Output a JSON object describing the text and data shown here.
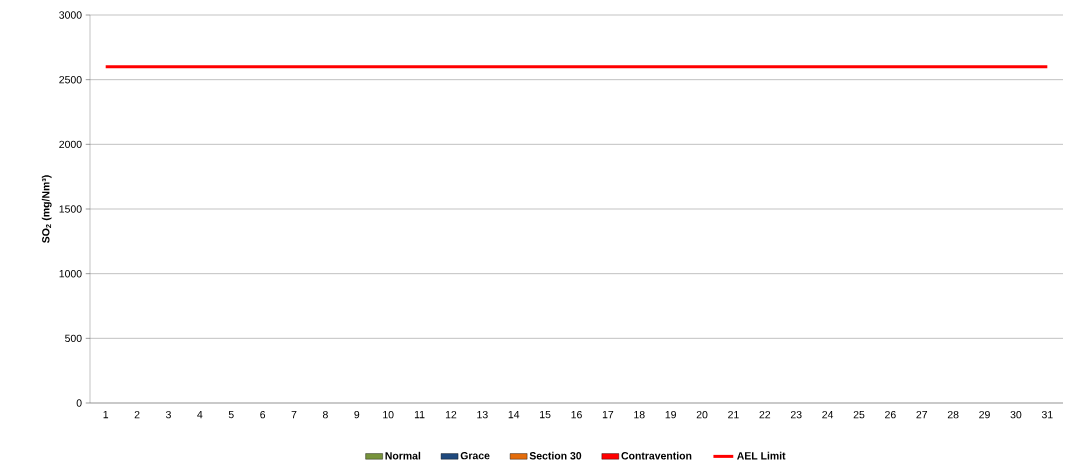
{
  "chart_data": {
    "type": "bar",
    "ylabel": "SO$_{2}$ (mg/Nm³)",
    "categories": [
      "1",
      "2",
      "3",
      "4",
      "5",
      "6",
      "7",
      "8",
      "9",
      "10",
      "11",
      "12",
      "13",
      "14",
      "15",
      "16",
      "17",
      "18",
      "19",
      "20",
      "21",
      "22",
      "23",
      "24",
      "25",
      "26",
      "27",
      "28",
      "29",
      "30",
      "31"
    ],
    "series": [
      {
        "name": "Normal",
        "color": "#77933c",
        "values": [
          null,
          null,
          null,
          null,
          null,
          null,
          null,
          null,
          null,
          null,
          null,
          null,
          null,
          null,
          null,
          null,
          null,
          null,
          null,
          null,
          null,
          null,
          null,
          null,
          null,
          null,
          null,
          null,
          null,
          null,
          null
        ]
      },
      {
        "name": "Grace",
        "color": "#1f497d",
        "values": [
          null,
          null,
          null,
          null,
          null,
          null,
          null,
          null,
          null,
          null,
          null,
          null,
          null,
          null,
          null,
          null,
          null,
          null,
          null,
          null,
          null,
          null,
          null,
          null,
          null,
          null,
          null,
          null,
          null,
          null,
          null
        ]
      },
      {
        "name": "Section 30",
        "color": "#e46c0a",
        "values": [
          null,
          null,
          null,
          null,
          null,
          null,
          null,
          null,
          null,
          null,
          null,
          null,
          null,
          null,
          null,
          null,
          null,
          null,
          null,
          null,
          null,
          null,
          null,
          null,
          null,
          null,
          null,
          null,
          null,
          null,
          null
        ]
      },
      {
        "name": "Contravention",
        "color": "#ff0000",
        "values": [
          null,
          null,
          null,
          null,
          null,
          null,
          null,
          null,
          null,
          null,
          null,
          null,
          null,
          null,
          null,
          null,
          null,
          null,
          null,
          null,
          null,
          null,
          null,
          null,
          null,
          null,
          null,
          null,
          null,
          null,
          null
        ]
      },
      {
        "name": "AEL Limit",
        "type": "line",
        "color": "#ff0000",
        "values": [
          2600,
          2600,
          2600,
          2600,
          2600,
          2600,
          2600,
          2600,
          2600,
          2600,
          2600,
          2600,
          2600,
          2600,
          2600,
          2600,
          2600,
          2600,
          2600,
          2600,
          2600,
          2600,
          2600,
          2600,
          2600,
          2600,
          2600,
          2600,
          2600,
          2600,
          2600
        ]
      }
    ],
    "ylim": [
      0,
      3000
    ],
    "yticks": [
      0,
      500,
      1000,
      1500,
      2000,
      2500,
      3000
    ],
    "grid": "y",
    "legend": "bottom"
  }
}
